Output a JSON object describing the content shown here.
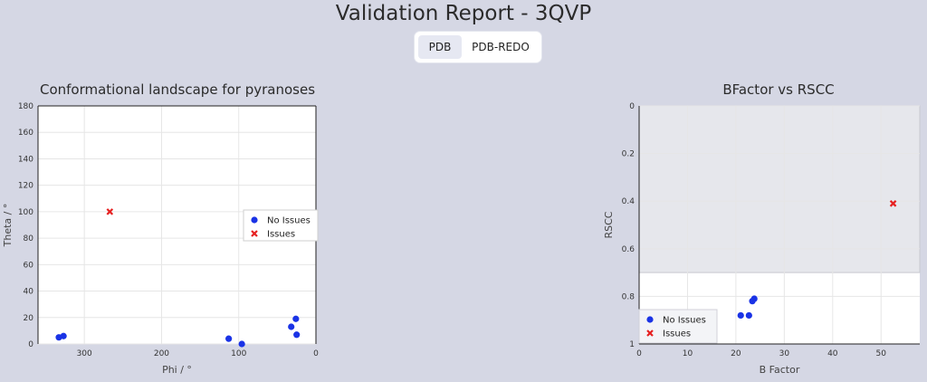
{
  "page": {
    "title": "Validation Report - 3QVP"
  },
  "tabs": [
    {
      "label": "PDB",
      "active": true
    },
    {
      "label": "PDB-REDO",
      "active": false
    }
  ],
  "colors": {
    "no_issues": "#1a33e6",
    "issues": "#e62020"
  },
  "chart_data": [
    {
      "type": "scatter",
      "title": "Conformational landscape for pyranoses",
      "xlabel": "Phi / °",
      "ylabel": "Theta / °",
      "xlim": [
        360,
        0
      ],
      "ylim": [
        180,
        0
      ],
      "xticks": [
        300,
        200,
        100,
        0
      ],
      "yticks": [
        0,
        20,
        40,
        60,
        80,
        100,
        120,
        140,
        160,
        180
      ],
      "grid": true,
      "legend_position": "right",
      "series": [
        {
          "name": "No Issues",
          "marker": "circle",
          "x": [
            333,
            327,
            113,
            96,
            32,
            25,
            26
          ],
          "y": [
            5,
            6,
            4,
            0,
            13,
            7,
            19
          ]
        },
        {
          "name": "Issues",
          "marker": "x",
          "x": [
            267
          ],
          "y": [
            100
          ]
        }
      ]
    },
    {
      "type": "scatter",
      "title": "BFactor vs RSCC",
      "xlabel": "B Factor",
      "ylabel": "RSCC",
      "xlim": [
        0,
        58
      ],
      "ylim": [
        0,
        1
      ],
      "xticks": [
        0,
        10,
        20,
        30,
        40,
        50
      ],
      "yticks": [
        0,
        0.2,
        0.4,
        0.6,
        0.8,
        1
      ],
      "grid": true,
      "shaded_region": {
        "y_from": 0,
        "y_to": 0.7
      },
      "legend_position": "bottom-left",
      "series": [
        {
          "name": "No Issues",
          "marker": "circle",
          "x": [
            12.2,
            14.5,
            15.3,
            21,
            22.7,
            23.4,
            23.8
          ],
          "y": [
            0.93,
            0.93,
            0.92,
            0.88,
            0.88,
            0.82,
            0.81
          ]
        },
        {
          "name": "Issues",
          "marker": "x",
          "x": [
            52.5
          ],
          "y": [
            0.41
          ]
        }
      ]
    }
  ]
}
